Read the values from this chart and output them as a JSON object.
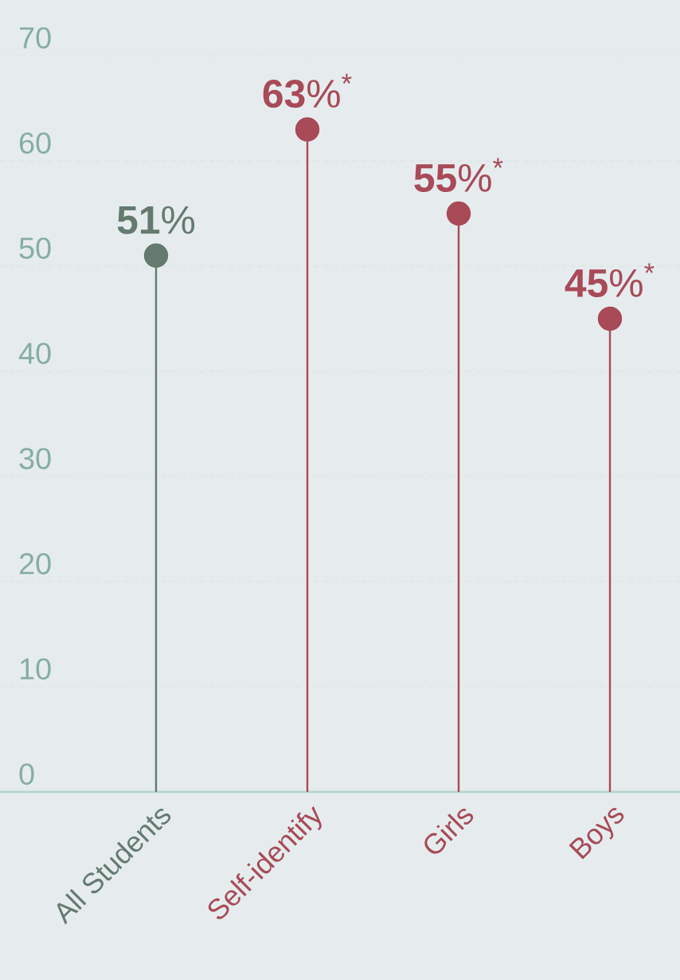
{
  "chart_data": {
    "type": "lollipop",
    "categories": [
      "All Students",
      "Self-identify",
      "Girls",
      "Boys"
    ],
    "values": [
      51,
      63,
      55,
      45
    ],
    "colors": [
      "#647a6f",
      "#a84a57",
      "#a84a57",
      "#a84a57"
    ],
    "value_labels": [
      "**51**%",
      "**63**%$^{*}$",
      "**55**%$^{*}$",
      "**45**%$^{*}$"
    ],
    "ylim": [
      0,
      70
    ],
    "yticks": [
      0,
      10,
      20,
      30,
      40,
      50,
      60,
      70
    ],
    "grid": "y",
    "marker": "circle"
  }
}
